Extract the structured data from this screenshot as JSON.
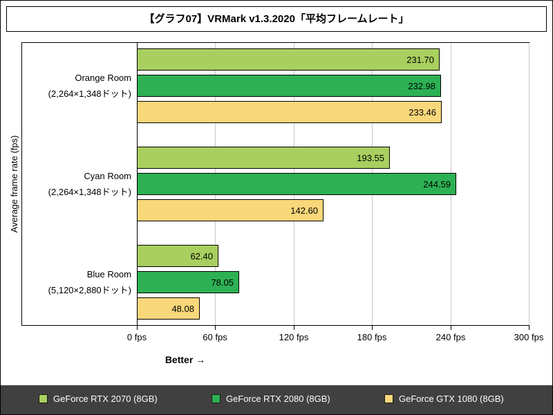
{
  "title": "【グラフ07】VRMark v1.3.2020「平均フレームレート」",
  "colors": {
    "legend_band": "#404040",
    "gridline": "#c9c9c9",
    "bar_border": "#000000"
  },
  "chart_data": {
    "type": "bar",
    "orientation": "horizontal",
    "title": "【グラフ07】VRMark v1.3.2020「平均フレームレート」",
    "ylabel": "Average frame rate (fps)",
    "xlabel": "Better →",
    "xlim": [
      0,
      300
    ],
    "x_tick_step": 60,
    "x_ticks": [
      "0 fps",
      "60 fps",
      "120 fps",
      "180 fps",
      "240 fps",
      "300 fps"
    ],
    "grid": true,
    "legend_position": "bottom",
    "categories": [
      {
        "line1": "Orange Room",
        "line2": "(2,264×1,348ドット)"
      },
      {
        "line1": "Cyan Room",
        "line2": "(2,264×1,348ドット)"
      },
      {
        "line1": "Blue Room",
        "line2": "(5,120×2,880ドット)"
      }
    ],
    "series": [
      {
        "name": "GeForce RTX 2070 (8GB)",
        "color": "#a8cf5f",
        "values": [
          231.7,
          193.55,
          62.4
        ]
      },
      {
        "name": "GeForce RTX 2080 (8GB)",
        "color": "#2db154",
        "values": [
          232.98,
          244.59,
          78.05
        ]
      },
      {
        "name": "GeForce GTX 1080 (8GB)",
        "color": "#f9d77b",
        "values": [
          233.46,
          142.6,
          48.08
        ]
      }
    ]
  }
}
